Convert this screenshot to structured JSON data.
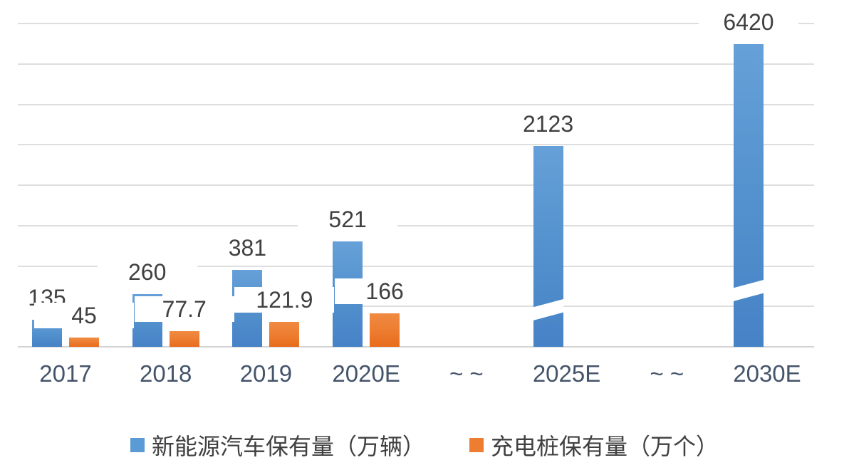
{
  "chart_data": {
    "type": "bar",
    "title": "",
    "categories": [
      "2017",
      "2018",
      "2019",
      "2020E",
      "~ ~",
      "2025E",
      "~ ~",
      "2030E"
    ],
    "series": [
      {
        "name": "新能源汽车保有量（万辆）",
        "color": "#5B9BD5",
        "values": [
          135,
          260,
          381,
          521,
          null,
          2123,
          null,
          6420
        ]
      },
      {
        "name": "充电桩保有量（万个）",
        "color": "#ED7D31",
        "values": [
          45,
          77.7,
          121.9,
          166,
          null,
          null,
          null,
          null
        ]
      }
    ],
    "data_labels": {
      "series0": [
        "135",
        "260",
        "381",
        "521",
        "",
        "2123",
        "",
        "6420"
      ],
      "series1": [
        "45",
        "77.7",
        "121.9",
        "166",
        "",
        "",
        "",
        ""
      ]
    },
    "y_axis": {
      "min": 0,
      "max": 1600,
      "tick_step": 200,
      "labels_visible": false,
      "gridlines_on": true
    },
    "axis_breaks": [
      {
        "category": "2025E",
        "true_value": 2123,
        "drawn_value": 995,
        "break_center_value": 183
      },
      {
        "category": "2030E",
        "true_value": 6420,
        "drawn_value": 1498,
        "break_center_value": 278
      }
    ],
    "legend_position": "bottom",
    "colors": {
      "grid": "#DEDEDE",
      "axis_label_text": "#44546A",
      "data_label_text": "#404040",
      "legend_text": "#404040"
    }
  }
}
